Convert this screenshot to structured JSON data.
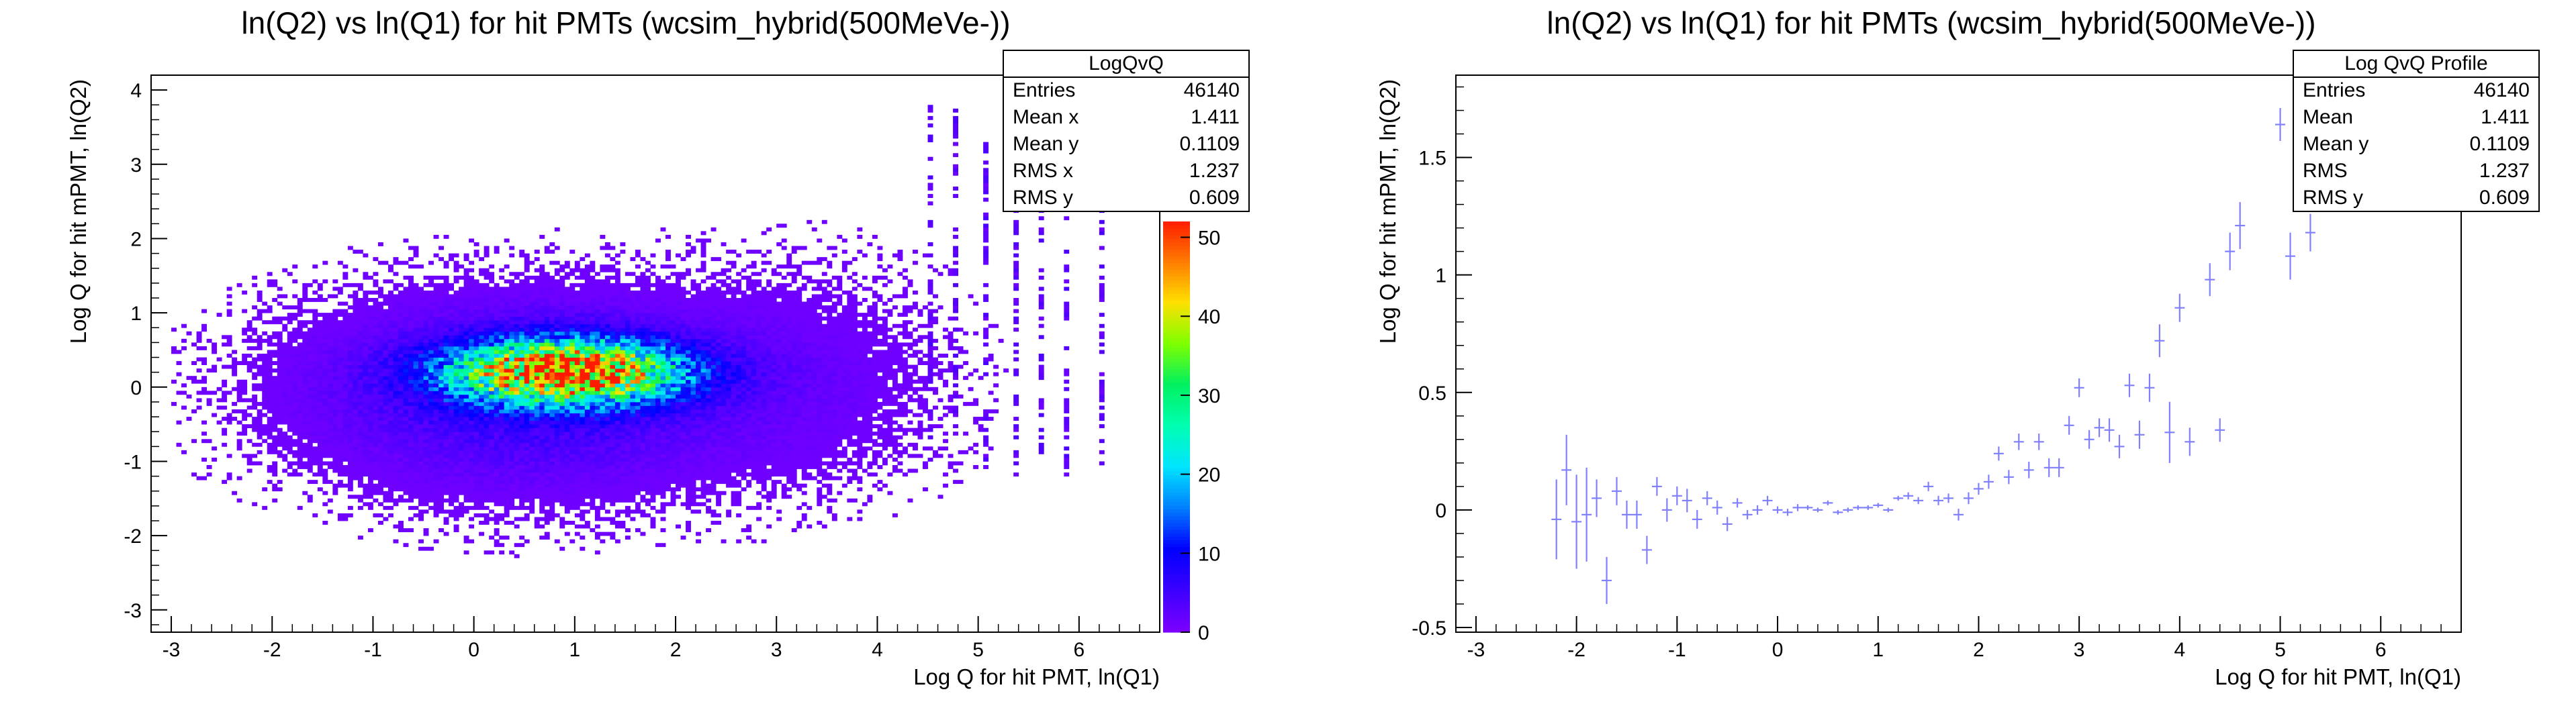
{
  "chart_data": [
    {
      "type": "heatmap",
      "title": "ln(Q2) vs ln(Q1) for hit PMTs (wcsim_hybrid(500MeVe-))",
      "xlabel": "Log Q for hit PMT, ln(Q1)",
      "ylabel": "Log Q for hit mPMT, ln(Q2)",
      "xlim": [
        -3.2,
        6.8
      ],
      "ylim": [
        -3.3,
        4.2
      ],
      "x_ticks": [
        -3,
        -2,
        -1,
        0,
        1,
        2,
        3,
        4,
        5,
        6
      ],
      "y_ticks": [
        -3,
        -2,
        -1,
        0,
        1,
        2,
        3,
        4
      ],
      "color_scale": {
        "min": 0,
        "max": 52,
        "ticks": [
          0,
          10,
          20,
          30,
          40,
          50
        ]
      },
      "density_model": {
        "core": {
          "x": 0.9,
          "y": 0.18,
          "sx": 0.75,
          "sy": 0.28,
          "peak": 52
        },
        "broad": {
          "x": 0.5,
          "y": -0.1,
          "sx": 1.3,
          "sy": 0.75,
          "peak": 6
        },
        "right_columns_x": [
          4.5,
          4.75,
          5.05,
          5.35,
          5.6,
          5.85,
          6.2
        ]
      },
      "stats": {
        "name": "LogQvQ",
        "rows": [
          {
            "label": "Entries",
            "value": "46140"
          },
          {
            "label": "Mean x",
            "value": "1.411"
          },
          {
            "label": "Mean y",
            "value": "0.1109"
          },
          {
            "label": "RMS x",
            "value": "1.237"
          },
          {
            "label": "RMS y",
            "value": "0.609"
          }
        ]
      },
      "colors": [
        "#7b00ff",
        "#3a00ff",
        "#0000ff",
        "#007fff",
        "#00e5ff",
        "#00ffb0",
        "#00f060",
        "#7fff00",
        "#ffe000",
        "#ff7a00",
        "#ff1a00"
      ]
    },
    {
      "type": "scatter",
      "title": "ln(Q2) vs ln(Q1) for hit PMTs (wcsim_hybrid(500MeVe-))",
      "xlabel": "Log Q for hit PMT, ln(Q1)",
      "ylabel": "Log Q for hit mPMT, ln(Q2)",
      "xlim": [
        -3.2,
        6.8
      ],
      "ylim": [
        -0.52,
        1.85
      ],
      "x_ticks": [
        -3,
        -2,
        -1,
        0,
        1,
        2,
        3,
        4,
        5,
        6
      ],
      "y_ticks": [
        -0.5,
        0,
        0.5,
        1,
        1.5
      ],
      "y_tick_labels": [
        "-0.5",
        "0",
        "0.5",
        "1",
        "1.5"
      ],
      "marker_color": "#8080ff",
      "stats": {
        "name": "Log QvQ Profile",
        "rows": [
          {
            "label": "Entries",
            "value": "46140"
          },
          {
            "label": "Mean",
            "value": "1.411"
          },
          {
            "label": "Mean y",
            "value": "0.1109"
          },
          {
            "label": "RMS",
            "value": "1.237"
          },
          {
            "label": "RMS y",
            "value": "0.609"
          }
        ]
      },
      "points": [
        {
          "x": -2.2,
          "y": -0.04,
          "ey": 0.17
        },
        {
          "x": -2.1,
          "y": 0.17,
          "ey": 0.15
        },
        {
          "x": -2.0,
          "y": -0.05,
          "ey": 0.2
        },
        {
          "x": -1.9,
          "y": -0.02,
          "ey": 0.2
        },
        {
          "x": -1.8,
          "y": 0.05,
          "ey": 0.08
        },
        {
          "x": -1.7,
          "y": -0.3,
          "ey": 0.1
        },
        {
          "x": -1.6,
          "y": 0.08,
          "ey": 0.06
        },
        {
          "x": -1.5,
          "y": -0.02,
          "ey": 0.06
        },
        {
          "x": -1.4,
          "y": -0.02,
          "ey": 0.06
        },
        {
          "x": -1.3,
          "y": -0.17,
          "ey": 0.06
        },
        {
          "x": -1.2,
          "y": 0.1,
          "ey": 0.04
        },
        {
          "x": -1.1,
          "y": 0.0,
          "ey": 0.05
        },
        {
          "x": -1.0,
          "y": 0.06,
          "ey": 0.04
        },
        {
          "x": -0.9,
          "y": 0.04,
          "ey": 0.05
        },
        {
          "x": -0.8,
          "y": -0.04,
          "ey": 0.04
        },
        {
          "x": -0.7,
          "y": 0.05,
          "ey": 0.03
        },
        {
          "x": -0.6,
          "y": 0.01,
          "ey": 0.03
        },
        {
          "x": -0.5,
          "y": -0.06,
          "ey": 0.03
        },
        {
          "x": -0.4,
          "y": 0.03,
          "ey": 0.02
        },
        {
          "x": -0.3,
          "y": -0.02,
          "ey": 0.02
        },
        {
          "x": -0.2,
          "y": 0.0,
          "ey": 0.02
        },
        {
          "x": -0.1,
          "y": 0.04,
          "ey": 0.02
        },
        {
          "x": 0.0,
          "y": 0.0,
          "ey": 0.015
        },
        {
          "x": 0.1,
          "y": -0.01,
          "ey": 0.015
        },
        {
          "x": 0.2,
          "y": 0.01,
          "ey": 0.015
        },
        {
          "x": 0.3,
          "y": 0.01,
          "ey": 0.01
        },
        {
          "x": 0.4,
          "y": 0.0,
          "ey": 0.01
        },
        {
          "x": 0.5,
          "y": 0.03,
          "ey": 0.01
        },
        {
          "x": 0.6,
          "y": -0.01,
          "ey": 0.01
        },
        {
          "x": 0.7,
          "y": 0.0,
          "ey": 0.01
        },
        {
          "x": 0.8,
          "y": 0.01,
          "ey": 0.01
        },
        {
          "x": 0.9,
          "y": 0.01,
          "ey": 0.01
        },
        {
          "x": 1.0,
          "y": 0.02,
          "ey": 0.01
        },
        {
          "x": 1.1,
          "y": 0.0,
          "ey": 0.01
        },
        {
          "x": 1.2,
          "y": 0.05,
          "ey": 0.01
        },
        {
          "x": 1.3,
          "y": 0.06,
          "ey": 0.015
        },
        {
          "x": 1.4,
          "y": 0.04,
          "ey": 0.015
        },
        {
          "x": 1.5,
          "y": 0.1,
          "ey": 0.02
        },
        {
          "x": 1.6,
          "y": 0.04,
          "ey": 0.02
        },
        {
          "x": 1.7,
          "y": 0.05,
          "ey": 0.02
        },
        {
          "x": 1.8,
          "y": -0.02,
          "ey": 0.025
        },
        {
          "x": 1.9,
          "y": 0.05,
          "ey": 0.025
        },
        {
          "x": 2.0,
          "y": 0.09,
          "ey": 0.025
        },
        {
          "x": 2.1,
          "y": 0.12,
          "ey": 0.03
        },
        {
          "x": 2.2,
          "y": 0.24,
          "ey": 0.03
        },
        {
          "x": 2.3,
          "y": 0.14,
          "ey": 0.03
        },
        {
          "x": 2.4,
          "y": 0.29,
          "ey": 0.035
        },
        {
          "x": 2.5,
          "y": 0.17,
          "ey": 0.035
        },
        {
          "x": 2.6,
          "y": 0.29,
          "ey": 0.035
        },
        {
          "x": 2.7,
          "y": 0.18,
          "ey": 0.04
        },
        {
          "x": 2.8,
          "y": 0.18,
          "ey": 0.04
        },
        {
          "x": 2.9,
          "y": 0.36,
          "ey": 0.04
        },
        {
          "x": 3.0,
          "y": 0.52,
          "ey": 0.04
        },
        {
          "x": 3.1,
          "y": 0.3,
          "ey": 0.04
        },
        {
          "x": 3.2,
          "y": 0.35,
          "ey": 0.04
        },
        {
          "x": 3.3,
          "y": 0.34,
          "ey": 0.05
        },
        {
          "x": 3.4,
          "y": 0.27,
          "ey": 0.05
        },
        {
          "x": 3.5,
          "y": 0.53,
          "ey": 0.05
        },
        {
          "x": 3.6,
          "y": 0.32,
          "ey": 0.06
        },
        {
          "x": 3.7,
          "y": 0.52,
          "ey": 0.06
        },
        {
          "x": 3.8,
          "y": 0.72,
          "ey": 0.07
        },
        {
          "x": 3.9,
          "y": 0.33,
          "ey": 0.13
        },
        {
          "x": 4.0,
          "y": 0.86,
          "ey": 0.06
        },
        {
          "x": 4.1,
          "y": 0.29,
          "ey": 0.06
        },
        {
          "x": 4.3,
          "y": 0.98,
          "ey": 0.07
        },
        {
          "x": 4.4,
          "y": 0.34,
          "ey": 0.05
        },
        {
          "x": 4.5,
          "y": 1.1,
          "ey": 0.08
        },
        {
          "x": 4.6,
          "y": 1.21,
          "ey": 0.1
        },
        {
          "x": 5.0,
          "y": 1.64,
          "ey": 0.07
        },
        {
          "x": 5.1,
          "y": 1.08,
          "ey": 0.1
        },
        {
          "x": 5.3,
          "y": 1.18,
          "ey": 0.08
        }
      ]
    }
  ]
}
